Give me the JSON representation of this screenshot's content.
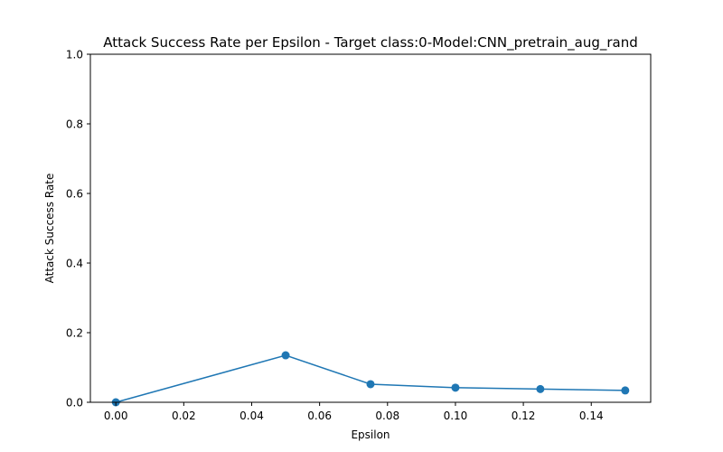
{
  "chart_data": {
    "type": "line",
    "title": "Attack Success Rate per Epsilon - Target class:0-Model:CNN_pretrain_aug_rand",
    "xlabel": "Epsilon",
    "ylabel": "Attack Success Rate",
    "xlim": [
      -0.0075,
      0.1575
    ],
    "ylim": [
      0,
      1.0
    ],
    "x_ticks": [
      0.0,
      0.02,
      0.04,
      0.06,
      0.08,
      0.1,
      0.12,
      0.14
    ],
    "x_tick_labels": [
      "0.00",
      "0.02",
      "0.04",
      "0.06",
      "0.08",
      "0.10",
      "0.12",
      "0.14"
    ],
    "y_ticks": [
      0.0,
      0.2,
      0.4,
      0.6,
      0.8,
      1.0
    ],
    "y_tick_labels": [
      "0.0",
      "0.2",
      "0.4",
      "0.6",
      "0.8",
      "1.0"
    ],
    "grid": false,
    "legend": "none",
    "series": [
      {
        "color": "#1f77b4",
        "marker": "circle",
        "x": [
          0.0,
          0.05,
          0.075,
          0.1,
          0.125,
          0.15
        ],
        "y": [
          0.0,
          0.135,
          0.052,
          0.042,
          0.038,
          0.034
        ]
      }
    ]
  }
}
